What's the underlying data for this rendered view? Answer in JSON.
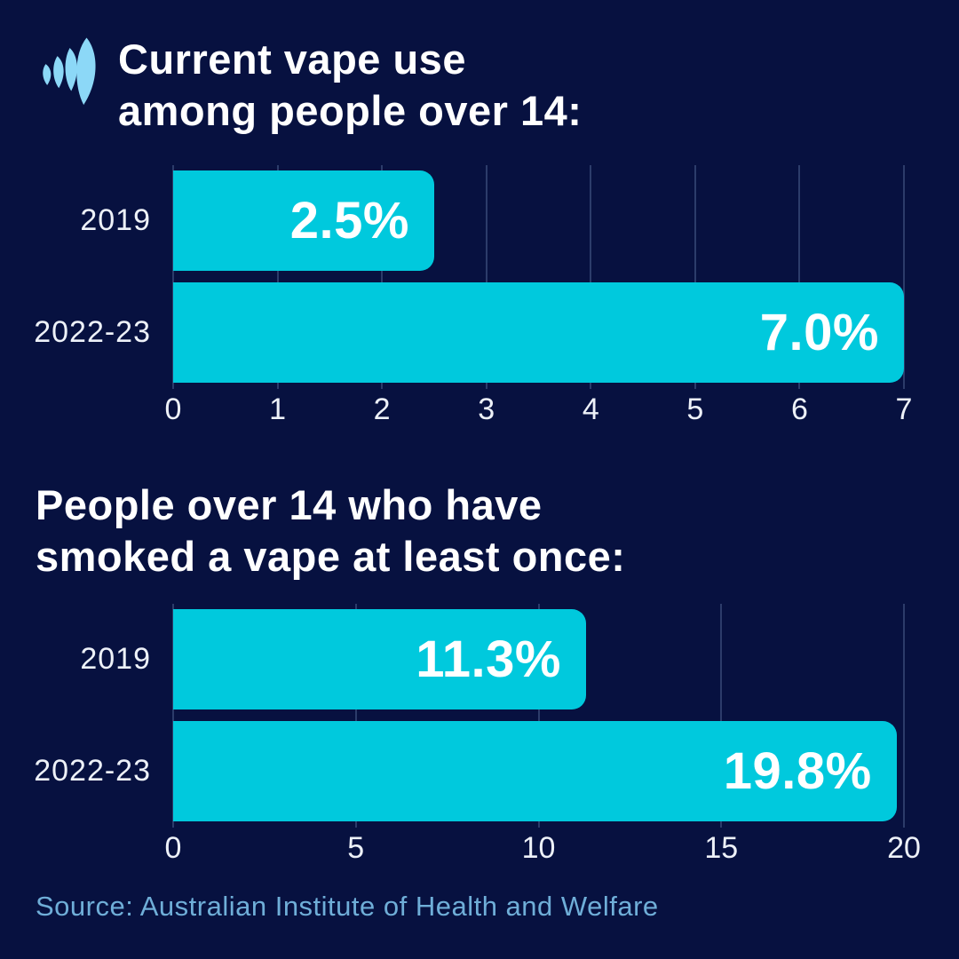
{
  "page": {
    "background": "#071140",
    "bar_color": "#00C9DD",
    "grid_color": "#2C3C6A",
    "label_color": "#EDF1F8",
    "title_color": "#FFFFFF",
    "source_color": "#6FAED8",
    "logo_color": "#8CD8F7"
  },
  "logo": {
    "name": "SBS logo"
  },
  "source": "Source: Australian Institute of Health and Welfare",
  "chart_data": [
    {
      "type": "bar",
      "orientation": "horizontal",
      "title": "Current vape use among people over 14:",
      "title_lines": [
        "Current vape use",
        "among people over 14:"
      ],
      "categories": [
        "2019",
        "2022-23"
      ],
      "values": [
        2.5,
        7.0
      ],
      "value_labels": [
        "2.5%",
        "7.0%"
      ],
      "xlim": [
        0,
        7
      ],
      "x_ticks": [
        0,
        1,
        2,
        3,
        4,
        5,
        6,
        7
      ],
      "x_tick_labels": [
        "0",
        "1",
        "2",
        "3",
        "4",
        "5",
        "6",
        "7"
      ],
      "grid": true,
      "legend": false,
      "bar_color": "#00C9DD"
    },
    {
      "type": "bar",
      "orientation": "horizontal",
      "title": "People over 14 who have smoked a vape at least once:",
      "title_lines": [
        "People over 14 who have",
        "smoked a vape at least once:"
      ],
      "categories": [
        "2019",
        "2022-23"
      ],
      "values": [
        11.3,
        19.8
      ],
      "value_labels": [
        "11.3%",
        "19.8%"
      ],
      "xlim": [
        0,
        20
      ],
      "x_ticks": [
        0,
        5,
        10,
        15,
        20
      ],
      "x_tick_labels": [
        "0",
        "5",
        "10",
        "15",
        "20"
      ],
      "grid": true,
      "legend": false,
      "bar_color": "#00C9DD"
    }
  ]
}
